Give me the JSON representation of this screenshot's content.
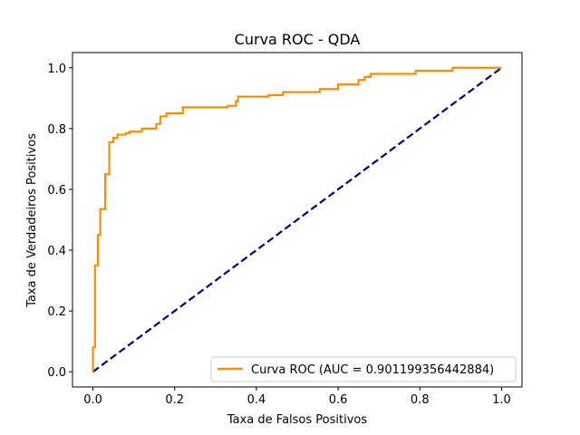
{
  "chart_data": {
    "type": "line",
    "title": "Curva ROC - QDA",
    "xlabel": "Taxa de Falsos Positivos",
    "ylabel": "Taxa de Verdadeiros Positivos",
    "xlim": [
      -0.05,
      1.05
    ],
    "ylim": [
      -0.05,
      1.05
    ],
    "xticks": [
      "0.0",
      "0.2",
      "0.4",
      "0.6",
      "0.8",
      "1.0"
    ],
    "yticks": [
      "0.0",
      "0.2",
      "0.4",
      "0.6",
      "0.8",
      "1.0"
    ],
    "grid": false,
    "legend_position": "lower-right",
    "series": [
      {
        "name": "Curva ROC (AUC = 0.901199356442884)",
        "color": "#ff8c00",
        "style": "solid",
        "x": [
          0.0,
          0.0,
          0.005,
          0.005,
          0.012,
          0.012,
          0.018,
          0.018,
          0.03,
          0.03,
          0.04,
          0.04,
          0.05,
          0.05,
          0.06,
          0.06,
          0.08,
          0.08,
          0.09,
          0.09,
          0.12,
          0.12,
          0.155,
          0.155,
          0.165,
          0.165,
          0.18,
          0.18,
          0.22,
          0.22,
          0.33,
          0.33,
          0.35,
          0.35,
          0.355,
          0.355,
          0.43,
          0.43,
          0.465,
          0.465,
          0.555,
          0.555,
          0.6,
          0.6,
          0.65,
          0.65,
          0.665,
          0.665,
          0.68,
          0.68,
          0.79,
          0.79,
          0.88,
          0.88,
          1.0
        ],
        "y": [
          0.0,
          0.08,
          0.08,
          0.35,
          0.35,
          0.45,
          0.45,
          0.535,
          0.535,
          0.65,
          0.65,
          0.755,
          0.755,
          0.77,
          0.77,
          0.78,
          0.78,
          0.785,
          0.785,
          0.79,
          0.79,
          0.8,
          0.8,
          0.815,
          0.815,
          0.84,
          0.84,
          0.85,
          0.85,
          0.87,
          0.87,
          0.875,
          0.875,
          0.89,
          0.89,
          0.905,
          0.905,
          0.91,
          0.91,
          0.92,
          0.92,
          0.93,
          0.93,
          0.945,
          0.945,
          0.96,
          0.96,
          0.97,
          0.97,
          0.98,
          0.98,
          0.99,
          0.99,
          1.0,
          1.0
        ]
      },
      {
        "name": "",
        "color": "#000080",
        "style": "dashed",
        "x": [
          0.0,
          1.0
        ],
        "y": [
          0.0,
          1.0
        ]
      }
    ]
  }
}
